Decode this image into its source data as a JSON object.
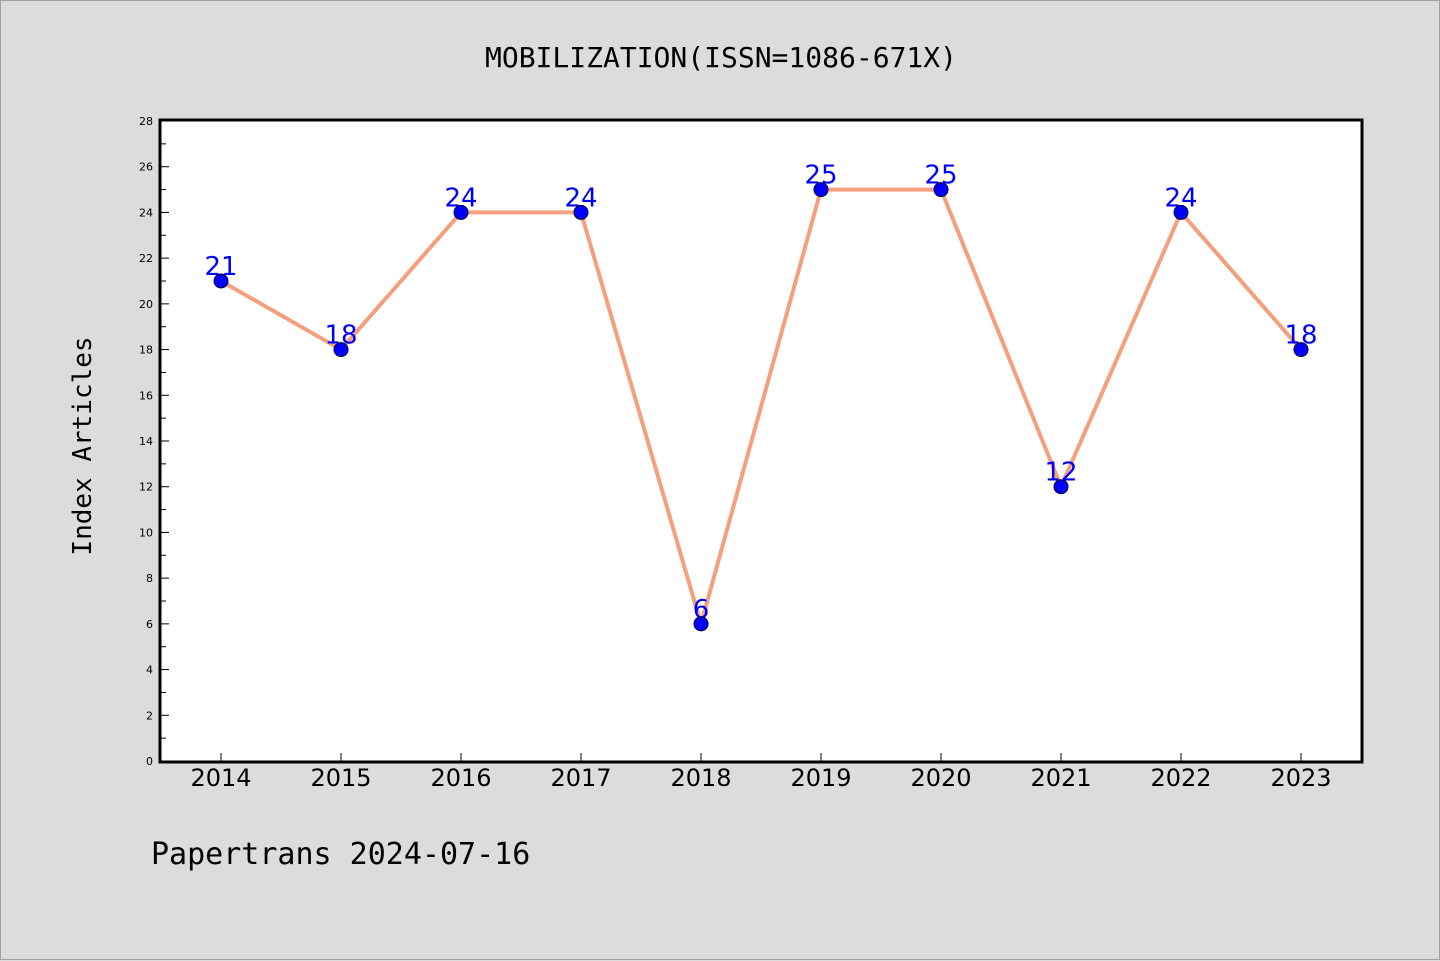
{
  "chart_data": {
    "type": "line",
    "title": "MOBILIZATION(ISSN=1086-671X)",
    "xlabel": "",
    "ylabel": "Index Articles",
    "categories": [
      "2014",
      "2015",
      "2016",
      "2017",
      "2018",
      "2019",
      "2020",
      "2021",
      "2022",
      "2023"
    ],
    "values": [
      21,
      18,
      24,
      24,
      6,
      25,
      25,
      12,
      24,
      18
    ],
    "ylim": [
      0,
      28
    ],
    "yticks": [
      "0",
      "2",
      "4",
      "6",
      "8",
      "10",
      "12",
      "14",
      "16",
      "18",
      "20",
      "22",
      "24",
      "26",
      "28"
    ],
    "grid": false,
    "line_color": "#f4a07e",
    "marker_color": "#0000ff",
    "label_color": "#0000ff"
  },
  "footer": "Papertrans 2024-07-16"
}
